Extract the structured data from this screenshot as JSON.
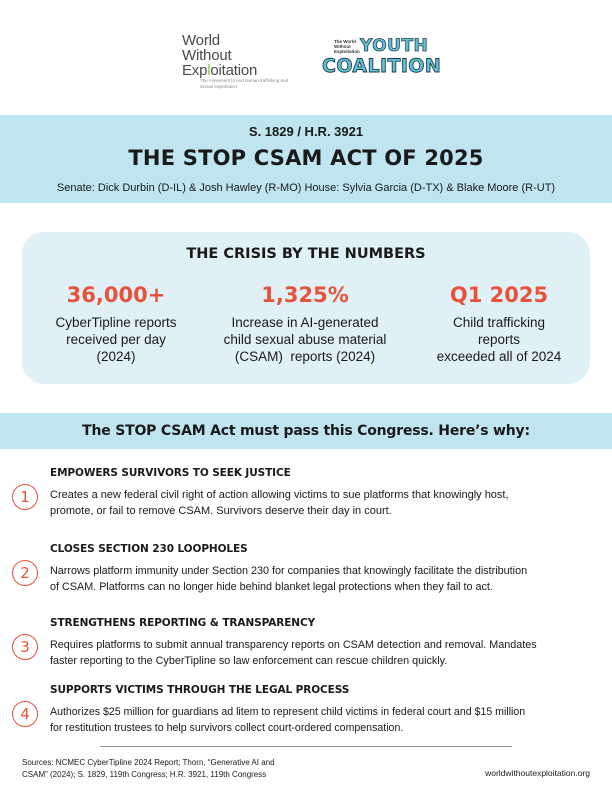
{
  "logos": {
    "wwe": {
      "line1": "World",
      "line2": "Without",
      "line3_pre": "Exp",
      "line3_accent": "l",
      "line3_post": "oitation",
      "tagline": "The movement to end human trafficking and sexual exploitation"
    },
    "youth_coalition": {
      "small_text": "The World Without Exploitation",
      "word1": "YOUTH",
      "word2": "COALITION"
    }
  },
  "header": {
    "bill_numbers": "S. 1829 / H.R. 3921",
    "title": "THE STOP CSAM ACT OF 2025",
    "sponsors": "Senate: Dick Durbin (D-IL) & Josh Hawley (R-MO) House: Sylvia Garcia (D-TX) & Blake Moore (R-UT)"
  },
  "crisis": {
    "title": "THE CRISIS BY THE NUMBERS",
    "stats": [
      {
        "value": "36,000+",
        "lines": [
          "CyberTipline reports",
          "received per day",
          "(2024)"
        ]
      },
      {
        "value": "1,325%",
        "lines": [
          "Increase in AI-generated",
          "child sexual abuse material",
          "(CSAM)  reports (2024)"
        ]
      },
      {
        "value": "Q1 2025",
        "lines": [
          "Child trafficking",
          "reports",
          "exceeded all of 2024"
        ]
      }
    ]
  },
  "why": {
    "text": "The STOP CSAM Act must pass this Congress. Here’s why:"
  },
  "reasons": [
    {
      "number": "1",
      "heading": "EMPOWERS SURVIVORS TO SEEK JUSTICE",
      "lines": [
        "Creates a new federal civil right of action allowing victims to sue platforms that knowingly host,",
        "promote, or fail to remove CSAM. Survivors deserve their day in court."
      ]
    },
    {
      "number": "2",
      "heading": "CLOSES SECTION 230 LOOPHOLES",
      "lines": [
        "Narrows platform immunity under Section 230 for companies that knowingly facilitate the distribution",
        "of CSAM. Platforms can no longer hide behind blanket legal protections when they fail to act."
      ]
    },
    {
      "number": "3",
      "heading": "STRENGTHENS REPORTING & TRANSPARENCY",
      "lines": [
        "Requires platforms to submit annual transparency reports on CSAM detection and removal. Mandates",
        "faster reporting to the CyberTipline so law enforcement can rescue children quickly."
      ]
    },
    {
      "number": "4",
      "heading": "SUPPORTS VICTIMS THROUGH THE LEGAL PROCESS",
      "lines": [
        "Authorizes $25 million for guardians ad litem to represent child victims in federal court and $15 million",
        "for restitution trustees to help survivors collect court-ordered compensation."
      ]
    }
  ],
  "footer": {
    "sources_line1": "Sources: NCMEC CyberTipline 2024 Report; Thorn, “Generative AI and",
    "sources_line2": "CSAM” (2024); S. 1829, 119th Congress; H.R. 3921, 119th Congress",
    "website": "worldwithoutexploitation.org"
  },
  "colors": {
    "band": "#bfe5f0",
    "crisis_bg": "#dff1f7",
    "accent_red": "#e8523a",
    "logo_green": "#8cc63f",
    "logo_teal": "#62c2d9"
  }
}
